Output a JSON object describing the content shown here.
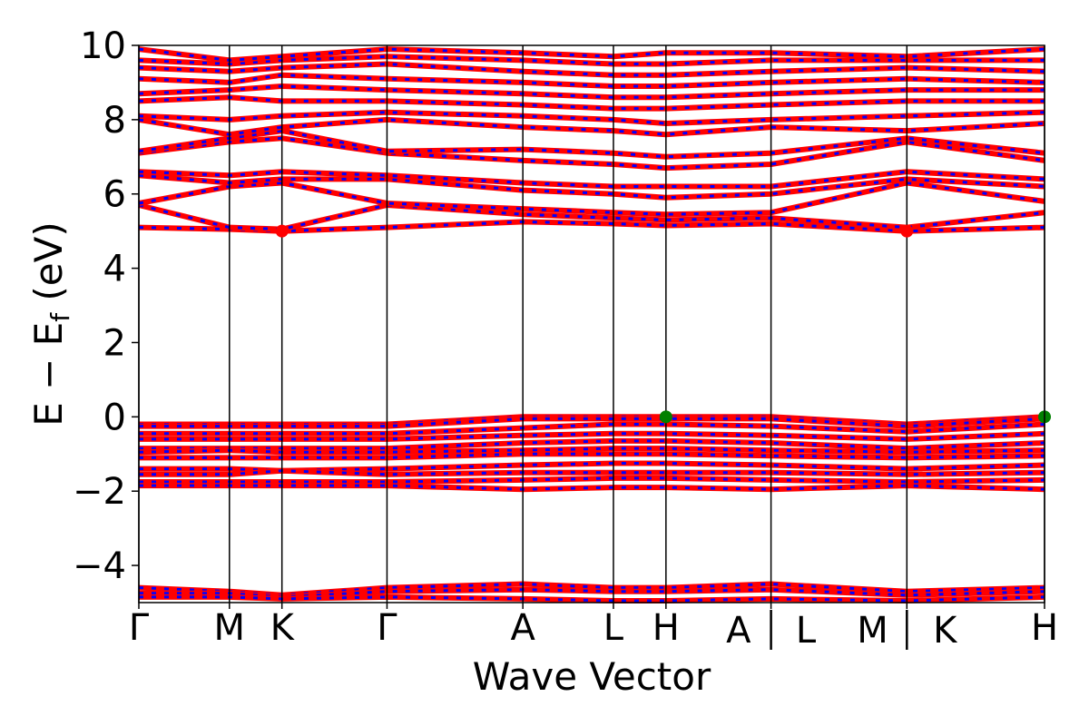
{
  "chart_data": {
    "type": "line",
    "title": "",
    "xlabel": "Wave Vector",
    "ylabel": "E − E",
    "ylabel_subscript": "f",
    "ylabel_unit": "(eV)",
    "ylim": [
      -5,
      10
    ],
    "yticks": [
      -4,
      -2,
      0,
      2,
      4,
      6,
      8,
      10
    ],
    "ytick_labels": [
      "−4",
      "−2",
      "0",
      "2",
      "4",
      "6",
      "8",
      "10"
    ],
    "x_range": [
      0,
      1
    ],
    "grid": false,
    "legend": "none",
    "high_symmetry_points": [
      {
        "label": "Γ",
        "x": 0.0
      },
      {
        "label": "M",
        "x": 0.1
      },
      {
        "label": "K",
        "x": 0.158
      },
      {
        "label": "Γ",
        "x": 0.274
      },
      {
        "label": "A",
        "x": 0.424
      },
      {
        "label": "L",
        "x": 0.524
      },
      {
        "label": "H",
        "x": 0.582
      },
      {
        "label": "A | L",
        "x": 0.698
      },
      {
        "label": "M | K",
        "x": 0.848
      },
      {
        "label": "H",
        "x": 1.0
      }
    ],
    "series_colors": {
      "spin_up": "#ff0000",
      "spin_down": "#0000ff"
    },
    "conduction_bands": [
      [
        [
          0.0,
          5.1
        ],
        [
          0.1,
          5.05
        ],
        [
          0.158,
          5.0
        ],
        [
          0.274,
          5.1
        ],
        [
          0.424,
          5.25
        ],
        [
          0.524,
          5.2
        ],
        [
          0.582,
          5.15
        ],
        [
          0.698,
          5.2
        ],
        [
          0.848,
          5.0
        ],
        [
          1.0,
          5.1
        ]
      ],
      [
        [
          0.0,
          5.7
        ],
        [
          0.1,
          5.1
        ],
        [
          0.158,
          5.05
        ],
        [
          0.274,
          5.7
        ],
        [
          0.424,
          5.45
        ],
        [
          0.524,
          5.35
        ],
        [
          0.582,
          5.3
        ],
        [
          0.698,
          5.35
        ],
        [
          0.848,
          5.1
        ],
        [
          1.0,
          5.5
        ]
      ],
      [
        [
          0.0,
          5.75
        ],
        [
          0.1,
          6.2
        ],
        [
          0.158,
          6.3
        ],
        [
          0.274,
          5.75
        ],
        [
          0.424,
          5.6
        ],
        [
          0.524,
          5.5
        ],
        [
          0.582,
          5.45
        ],
        [
          0.698,
          5.5
        ],
        [
          0.848,
          6.3
        ],
        [
          1.0,
          5.8
        ]
      ],
      [
        [
          0.0,
          6.5
        ],
        [
          0.1,
          6.3
        ],
        [
          0.158,
          6.4
        ],
        [
          0.274,
          6.4
        ],
        [
          0.424,
          6.1
        ],
        [
          0.524,
          6.0
        ],
        [
          0.582,
          5.9
        ],
        [
          0.698,
          6.0
        ],
        [
          0.848,
          6.4
        ],
        [
          1.0,
          6.2
        ]
      ],
      [
        [
          0.0,
          6.6
        ],
        [
          0.1,
          6.5
        ],
        [
          0.158,
          6.6
        ],
        [
          0.274,
          6.5
        ],
        [
          0.424,
          6.3
        ],
        [
          0.524,
          6.2
        ],
        [
          0.582,
          6.2
        ],
        [
          0.698,
          6.2
        ],
        [
          0.848,
          6.6
        ],
        [
          1.0,
          6.4
        ]
      ],
      [
        [
          0.0,
          7.1
        ],
        [
          0.1,
          7.4
        ],
        [
          0.158,
          7.5
        ],
        [
          0.274,
          7.1
        ],
        [
          0.424,
          6.9
        ],
        [
          0.524,
          6.8
        ],
        [
          0.582,
          6.7
        ],
        [
          0.698,
          6.8
        ],
        [
          0.848,
          7.4
        ],
        [
          1.0,
          6.9
        ]
      ],
      [
        [
          0.0,
          7.15
        ],
        [
          0.1,
          7.5
        ],
        [
          0.158,
          7.7
        ],
        [
          0.274,
          7.15
        ],
        [
          0.424,
          7.2
        ],
        [
          0.524,
          7.1
        ],
        [
          0.582,
          7.0
        ],
        [
          0.698,
          7.1
        ],
        [
          0.848,
          7.5
        ],
        [
          1.0,
          7.1
        ]
      ],
      [
        [
          0.0,
          8.0
        ],
        [
          0.1,
          7.6
        ],
        [
          0.158,
          7.8
        ],
        [
          0.274,
          8.0
        ],
        [
          0.424,
          7.8
        ],
        [
          0.524,
          7.7
        ],
        [
          0.582,
          7.6
        ],
        [
          0.698,
          7.8
        ],
        [
          0.848,
          7.7
        ],
        [
          1.0,
          7.9
        ]
      ],
      [
        [
          0.0,
          8.1
        ],
        [
          0.1,
          8.0
        ],
        [
          0.158,
          8.1
        ],
        [
          0.274,
          8.2
        ],
        [
          0.424,
          8.1
        ],
        [
          0.524,
          8.0
        ],
        [
          0.582,
          7.9
        ],
        [
          0.698,
          8.0
        ],
        [
          0.848,
          8.1
        ],
        [
          1.0,
          8.2
        ]
      ],
      [
        [
          0.0,
          8.5
        ],
        [
          0.1,
          8.6
        ],
        [
          0.158,
          8.5
        ],
        [
          0.274,
          8.5
        ],
        [
          0.424,
          8.4
        ],
        [
          0.524,
          8.3
        ],
        [
          0.582,
          8.3
        ],
        [
          0.698,
          8.4
        ],
        [
          0.848,
          8.5
        ],
        [
          1.0,
          8.5
        ]
      ],
      [
        [
          0.0,
          8.7
        ],
        [
          0.1,
          8.8
        ],
        [
          0.158,
          8.9
        ],
        [
          0.274,
          8.8
        ],
        [
          0.424,
          8.7
        ],
        [
          0.524,
          8.6
        ],
        [
          0.582,
          8.6
        ],
        [
          0.698,
          8.7
        ],
        [
          0.848,
          8.8
        ],
        [
          1.0,
          8.8
        ]
      ],
      [
        [
          0.0,
          9.1
        ],
        [
          0.1,
          9.0
        ],
        [
          0.158,
          9.2
        ],
        [
          0.274,
          9.1
        ],
        [
          0.424,
          9.0
        ],
        [
          0.524,
          8.9
        ],
        [
          0.582,
          8.9
        ],
        [
          0.698,
          9.0
        ],
        [
          0.848,
          9.1
        ],
        [
          1.0,
          9.0
        ]
      ],
      [
        [
          0.0,
          9.4
        ],
        [
          0.1,
          9.3
        ],
        [
          0.158,
          9.4
        ],
        [
          0.274,
          9.5
        ],
        [
          0.424,
          9.3
        ],
        [
          0.524,
          9.2
        ],
        [
          0.582,
          9.2
        ],
        [
          0.698,
          9.3
        ],
        [
          0.848,
          9.4
        ],
        [
          1.0,
          9.3
        ]
      ],
      [
        [
          0.0,
          9.6
        ],
        [
          0.1,
          9.5
        ],
        [
          0.158,
          9.6
        ],
        [
          0.274,
          9.7
        ],
        [
          0.424,
          9.6
        ],
        [
          0.524,
          9.5
        ],
        [
          0.582,
          9.5
        ],
        [
          0.698,
          9.6
        ],
        [
          0.848,
          9.6
        ],
        [
          1.0,
          9.6
        ]
      ],
      [
        [
          0.0,
          9.9
        ],
        [
          0.1,
          9.6
        ],
        [
          0.158,
          9.7
        ],
        [
          0.274,
          9.9
        ],
        [
          0.424,
          9.8
        ],
        [
          0.524,
          9.7
        ],
        [
          0.582,
          9.8
        ],
        [
          0.698,
          9.8
        ],
        [
          0.848,
          9.7
        ],
        [
          1.0,
          9.9
        ]
      ]
    ],
    "valence_bands": [
      [
        [
          0.0,
          -0.2
        ],
        [
          0.1,
          -0.2
        ],
        [
          0.158,
          -0.2
        ],
        [
          0.274,
          -0.2
        ],
        [
          0.424,
          0.0
        ],
        [
          0.524,
          0.0
        ],
        [
          0.582,
          0.0
        ],
        [
          0.698,
          0.0
        ],
        [
          0.848,
          -0.2
        ],
        [
          1.0,
          0.0
        ]
      ],
      [
        [
          0.0,
          -0.25
        ],
        [
          0.1,
          -0.25
        ],
        [
          0.158,
          -0.25
        ],
        [
          0.274,
          -0.25
        ],
        [
          0.424,
          -0.05
        ],
        [
          0.524,
          -0.05
        ],
        [
          0.582,
          -0.05
        ],
        [
          0.698,
          -0.05
        ],
        [
          0.848,
          -0.25
        ],
        [
          1.0,
          -0.05
        ]
      ],
      [
        [
          0.0,
          -0.45
        ],
        [
          0.1,
          -0.45
        ],
        [
          0.158,
          -0.45
        ],
        [
          0.274,
          -0.45
        ],
        [
          0.424,
          -0.3
        ],
        [
          0.524,
          -0.2
        ],
        [
          0.582,
          -0.2
        ],
        [
          0.698,
          -0.25
        ],
        [
          0.848,
          -0.4
        ],
        [
          1.0,
          -0.2
        ]
      ],
      [
        [
          0.0,
          -0.6
        ],
        [
          0.1,
          -0.6
        ],
        [
          0.158,
          -0.6
        ],
        [
          0.274,
          -0.6
        ],
        [
          0.424,
          -0.5
        ],
        [
          0.524,
          -0.45
        ],
        [
          0.582,
          -0.45
        ],
        [
          0.698,
          -0.5
        ],
        [
          0.848,
          -0.6
        ],
        [
          1.0,
          -0.45
        ]
      ],
      [
        [
          0.0,
          -0.85
        ],
        [
          0.1,
          -0.85
        ],
        [
          0.158,
          -0.85
        ],
        [
          0.274,
          -0.85
        ],
        [
          0.424,
          -0.7
        ],
        [
          0.524,
          -0.65
        ],
        [
          0.582,
          -0.65
        ],
        [
          0.698,
          -0.7
        ],
        [
          0.848,
          -0.85
        ],
        [
          1.0,
          -0.7
        ]
      ],
      [
        [
          0.0,
          -0.95
        ],
        [
          0.1,
          -0.9
        ],
        [
          0.158,
          -0.95
        ],
        [
          0.274,
          -0.95
        ],
        [
          0.424,
          -0.9
        ],
        [
          0.524,
          -0.85
        ],
        [
          0.582,
          -0.85
        ],
        [
          0.698,
          -0.9
        ],
        [
          0.848,
          -0.95
        ],
        [
          1.0,
          -0.9
        ]
      ],
      [
        [
          0.0,
          -1.1
        ],
        [
          0.1,
          -1.1
        ],
        [
          0.158,
          -1.1
        ],
        [
          0.274,
          -1.1
        ],
        [
          0.424,
          -1.0
        ],
        [
          0.524,
          -1.0
        ],
        [
          0.582,
          -1.0
        ],
        [
          0.698,
          -1.05
        ],
        [
          0.848,
          -1.1
        ],
        [
          1.0,
          -1.05
        ]
      ],
      [
        [
          0.0,
          -1.4
        ],
        [
          0.1,
          -1.4
        ],
        [
          0.158,
          -1.45
        ],
        [
          0.274,
          -1.4
        ],
        [
          0.424,
          -1.3
        ],
        [
          0.524,
          -1.25
        ],
        [
          0.582,
          -1.25
        ],
        [
          0.698,
          -1.3
        ],
        [
          0.848,
          -1.4
        ],
        [
          1.0,
          -1.3
        ]
      ],
      [
        [
          0.0,
          -1.55
        ],
        [
          0.1,
          -1.55
        ],
        [
          0.158,
          -1.45
        ],
        [
          0.274,
          -1.55
        ],
        [
          0.424,
          -1.5
        ],
        [
          0.524,
          -1.5
        ],
        [
          0.582,
          -1.5
        ],
        [
          0.698,
          -1.5
        ],
        [
          0.848,
          -1.55
        ],
        [
          1.0,
          -1.5
        ]
      ],
      [
        [
          0.0,
          -1.75
        ],
        [
          0.1,
          -1.75
        ],
        [
          0.158,
          -1.75
        ],
        [
          0.274,
          -1.75
        ],
        [
          0.424,
          -1.7
        ],
        [
          0.524,
          -1.65
        ],
        [
          0.582,
          -1.65
        ],
        [
          0.698,
          -1.7
        ],
        [
          0.848,
          -1.75
        ],
        [
          1.0,
          -1.7
        ]
      ],
      [
        [
          0.0,
          -1.85
        ],
        [
          0.1,
          -1.85
        ],
        [
          0.158,
          -1.85
        ],
        [
          0.274,
          -1.85
        ],
        [
          0.424,
          -1.95
        ],
        [
          0.524,
          -1.9
        ],
        [
          0.582,
          -1.9
        ],
        [
          0.698,
          -1.95
        ],
        [
          0.848,
          -1.85
        ],
        [
          1.0,
          -1.95
        ]
      ]
    ],
    "deep_bands": [
      [
        [
          0.0,
          -4.6
        ],
        [
          0.1,
          -4.7
        ],
        [
          0.158,
          -4.8
        ],
        [
          0.274,
          -4.6
        ],
        [
          0.424,
          -4.5
        ],
        [
          0.524,
          -4.6
        ],
        [
          0.582,
          -4.6
        ],
        [
          0.698,
          -4.5
        ],
        [
          0.848,
          -4.7
        ],
        [
          1.0,
          -4.6
        ]
      ],
      [
        [
          0.0,
          -4.75
        ],
        [
          0.1,
          -4.75
        ],
        [
          0.158,
          -4.85
        ],
        [
          0.274,
          -4.7
        ],
        [
          0.424,
          -4.65
        ],
        [
          0.524,
          -4.7
        ],
        [
          0.582,
          -4.7
        ],
        [
          0.698,
          -4.65
        ],
        [
          0.848,
          -4.8
        ],
        [
          1.0,
          -4.7
        ]
      ],
      [
        [
          0.0,
          -4.85
        ],
        [
          0.1,
          -4.85
        ],
        [
          0.158,
          -4.9
        ],
        [
          0.274,
          -4.85
        ],
        [
          0.424,
          -4.9
        ],
        [
          0.524,
          -4.95
        ],
        [
          0.582,
          -4.95
        ],
        [
          0.698,
          -4.9
        ],
        [
          0.848,
          -4.95
        ],
        [
          1.0,
          -4.85
        ]
      ]
    ],
    "markers": [
      {
        "x": 0.158,
        "y": 5.0,
        "color": "#ff0000",
        "role": "CBM"
      },
      {
        "x": 0.848,
        "y": 5.0,
        "color": "#ff0000",
        "role": "CBM"
      },
      {
        "x": 0.582,
        "y": 0.0,
        "color": "#008000",
        "role": "VBM"
      },
      {
        "x": 1.0,
        "y": 0.0,
        "color": "#008000",
        "role": "VBM"
      }
    ]
  }
}
